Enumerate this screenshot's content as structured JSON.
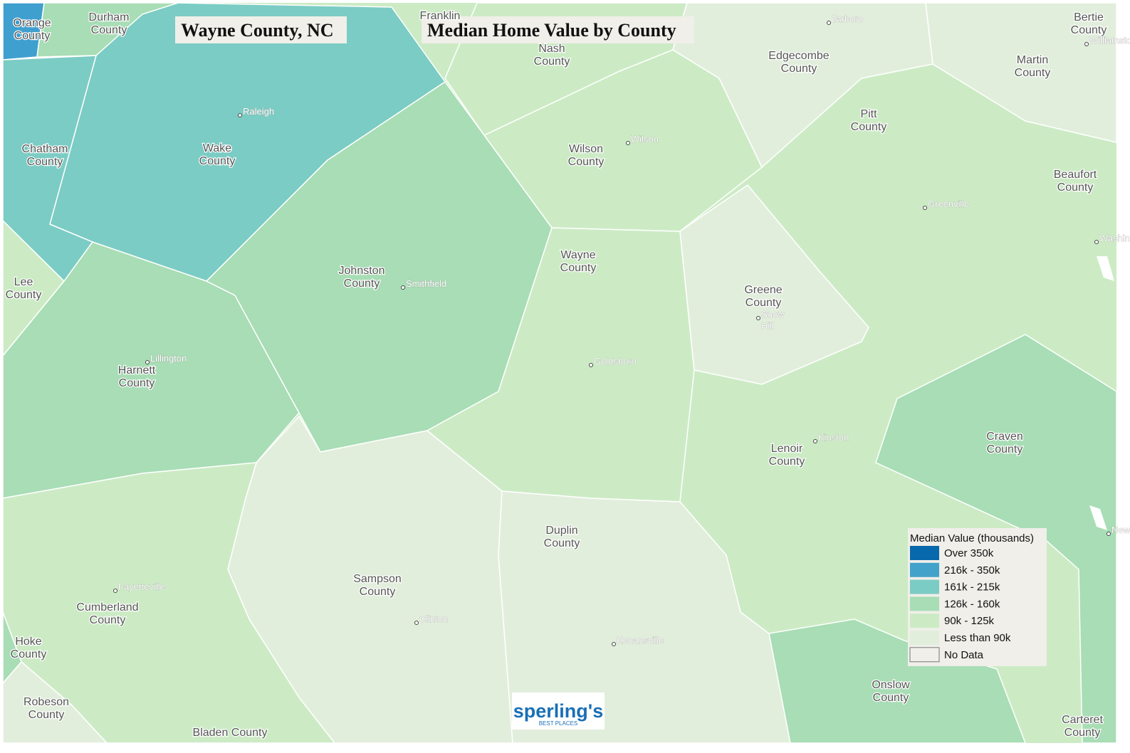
{
  "title": "Wayne County, NC",
  "subtitle": "Median Home Value by County",
  "counties": [
    {
      "lines": [
        "Orange",
        "County"
      ]
    },
    {
      "lines": [
        "Durham",
        "County"
      ]
    },
    {
      "lines": [
        "Franklin"
      ]
    },
    {
      "lines": [
        "Nash",
        "County"
      ]
    },
    {
      "lines": [
        "Edgecombe",
        "County"
      ]
    },
    {
      "lines": [
        "Bertie",
        "County"
      ]
    },
    {
      "lines": [
        "Martin",
        "County"
      ]
    },
    {
      "lines": [
        "Chatham",
        "County"
      ]
    },
    {
      "lines": [
        "Wake",
        "County"
      ]
    },
    {
      "lines": [
        "Wilson",
        "County"
      ]
    },
    {
      "lines": [
        "Pitt",
        "County"
      ]
    },
    {
      "lines": [
        "Beaufort",
        "County"
      ]
    },
    {
      "lines": [
        "Lee",
        "County"
      ]
    },
    {
      "lines": [
        "Johnston",
        "County"
      ]
    },
    {
      "lines": [
        "Wayne",
        "County"
      ]
    },
    {
      "lines": [
        "Greene",
        "County"
      ]
    },
    {
      "lines": [
        "Harnett",
        "County"
      ]
    },
    {
      "lines": [
        "Craven",
        "County"
      ]
    },
    {
      "lines": [
        "Lenoir",
        "County"
      ]
    },
    {
      "lines": [
        "Duplin",
        "County"
      ]
    },
    {
      "lines": [
        "Sampson",
        "County"
      ]
    },
    {
      "lines": [
        "Cumberland",
        "County"
      ]
    },
    {
      "lines": [
        "Hoke",
        "County"
      ]
    },
    {
      "lines": [
        "Robeson",
        "County"
      ]
    },
    {
      "lines": [
        "Bladen County"
      ]
    },
    {
      "lines": [
        "Onslow",
        "County"
      ]
    },
    {
      "lines": [
        "Carteret",
        "County"
      ]
    }
  ],
  "cities": [
    {
      "lines": [
        "Tarboro"
      ]
    },
    {
      "lines": [
        "Williamston"
      ]
    },
    {
      "lines": [
        "Raleigh"
      ]
    },
    {
      "lines": [
        "Wilson"
      ]
    },
    {
      "lines": [
        "Greenville"
      ]
    },
    {
      "lines": [
        "Washington"
      ]
    },
    {
      "lines": [
        "Smithfield"
      ]
    },
    {
      "lines": [
        "Snow",
        "Hill"
      ]
    },
    {
      "lines": [
        "Lillington"
      ]
    },
    {
      "lines": [
        "Goldsboro"
      ]
    },
    {
      "lines": [
        "Kinston"
      ]
    },
    {
      "lines": [
        "New Bern"
      ]
    },
    {
      "lines": [
        "Fayetteville"
      ]
    },
    {
      "lines": [
        "Clinton"
      ]
    },
    {
      "lines": [
        "Kenansville"
      ]
    }
  ],
  "legend": {
    "title": "Median Value (thousands)",
    "items": [
      {
        "label": "Over 350k",
        "color": "#0868ac"
      },
      {
        "label": "216k - 350k",
        "color": "#43a2ca"
      },
      {
        "label": "161k - 215k",
        "color": "#7bccc4"
      },
      {
        "label": "126k - 160k",
        "color": "#a8ddb5"
      },
      {
        "label": "90k - 125k",
        "color": "#ccebc5"
      },
      {
        "label": "Less than 90k",
        "color": "#e2eedc"
      },
      {
        "label": "No Data",
        "color": "#f0efe9"
      }
    ]
  },
  "logo": {
    "name": "sperling's",
    "tagline": "BEST PLACES"
  }
}
